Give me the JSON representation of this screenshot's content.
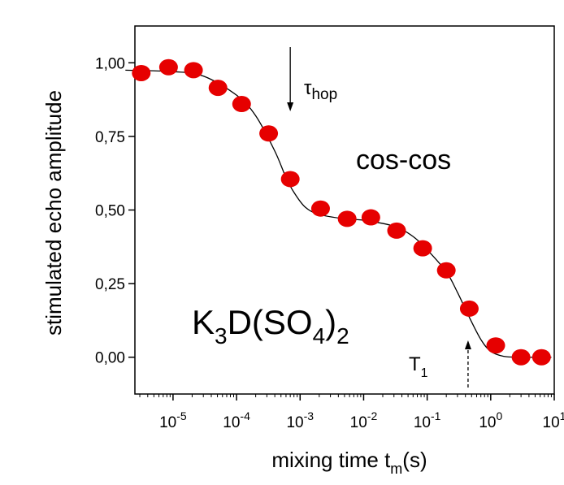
{
  "chart_data": {
    "type": "scatter",
    "title": "",
    "xlabel": {
      "main": "mixing time t",
      "sub": "m",
      "tail": "(s)"
    },
    "ylabel": "stimulated echo amplitude",
    "xscale": "log",
    "xlim_log10": [
      -5.6,
      1.0
    ],
    "ylim": [
      -0.125,
      1.125
    ],
    "x_ticks": [
      {
        "base": "10",
        "exp": "-5"
      },
      {
        "base": "10",
        "exp": "-4"
      },
      {
        "base": "10",
        "exp": "-3"
      },
      {
        "base": "10",
        "exp": "-2"
      },
      {
        "base": "10",
        "exp": "-1"
      },
      {
        "base": "10",
        "exp": "0"
      },
      {
        "base": "10",
        "exp": "1"
      }
    ],
    "x_tick_log10": [
      -5,
      -4,
      -3,
      -2,
      -1,
      0,
      1
    ],
    "y_ticks": [
      0,
      0.25,
      0.5,
      0.75,
      1.0
    ],
    "y_tick_labels": [
      "0,00",
      "0,25",
      "0,50",
      "0,75",
      "1,00"
    ],
    "series": [
      {
        "marker": "circle",
        "color": "#e60000",
        "x": [
          3.16e-06,
          8.5e-06,
          2.1e-05,
          5.1e-05,
          0.00012,
          0.00032,
          0.0007,
          0.0021,
          0.0055,
          0.013,
          0.033,
          0.085,
          0.2,
          0.46,
          1.2,
          3.0,
          6.3
        ],
        "y": [
          0.965,
          0.985,
          0.975,
          0.915,
          0.86,
          0.76,
          0.605,
          0.505,
          0.47,
          0.475,
          0.43,
          0.37,
          0.295,
          0.165,
          0.04,
          0.0,
          0.0
        ]
      }
    ],
    "fit_line": {
      "color": "#000000",
      "x": [
        1.78e-06,
        1e-05,
        3e-05,
        0.0001,
        0.0002,
        0.0004,
        0.0006,
        0.0008,
        0.0012,
        0.002,
        0.005,
        0.01,
        0.03,
        0.06,
        0.1,
        0.2,
        0.3,
        0.45,
        0.7,
        1.0,
        1.6,
        3.0,
        6.0,
        9.0
      ],
      "y": [
        0.975,
        0.97,
        0.955,
        0.89,
        0.82,
        0.7,
        0.61,
        0.56,
        0.51,
        0.485,
        0.47,
        0.465,
        0.445,
        0.41,
        0.365,
        0.29,
        0.22,
        0.14,
        0.06,
        0.02,
        0.003,
        0.0,
        0.0,
        0.0
      ]
    },
    "annotations": {
      "tau": {
        "symbol": "τ",
        "sub": "hop",
        "arrow_x": 0.0007,
        "arrow_style": "solid"
      },
      "t1": {
        "symbol": "T",
        "sub": "1",
        "arrow_x": 0.44,
        "arrow_style": "dashed"
      },
      "label_coscos": "cos-cos",
      "formula": {
        "p1": "K",
        "s1": "3",
        "p2": "D(SO",
        "s2": "4",
        "p3": ")",
        "s3": "2"
      }
    }
  }
}
